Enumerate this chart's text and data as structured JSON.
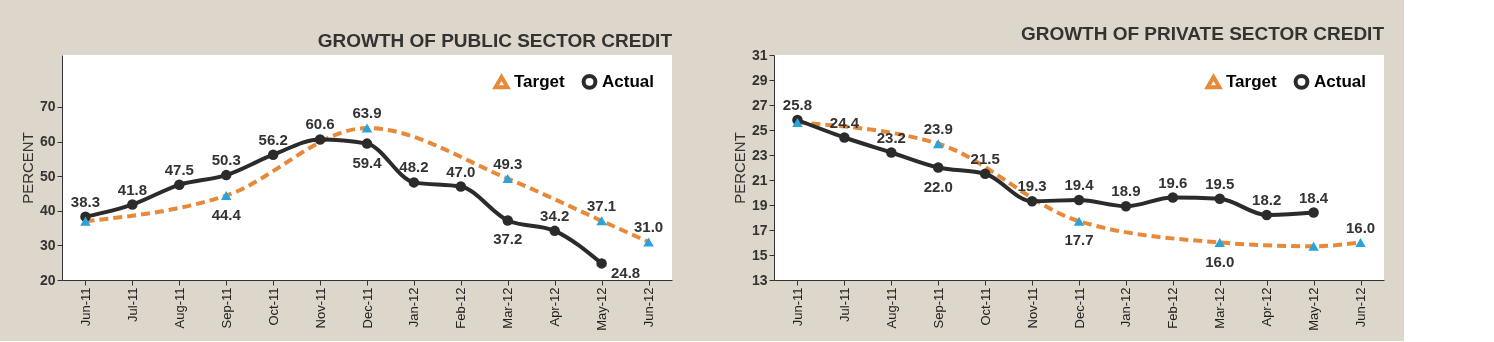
{
  "chart_data": [
    {
      "type": "line",
      "title": "GROWTH OF PUBLIC SECTOR CREDIT",
      "ylabel": "PERCENT",
      "categories": [
        "Jun-11",
        "Jul-11",
        "Aug-11",
        "Sep-11",
        "Oct-11",
        "Nov-11",
        "Dec-11",
        "Jan-12",
        "Feb-12",
        "Mar-12",
        "Apr-12",
        "May-12",
        "Jun-12"
      ],
      "series": [
        {
          "name": "Target",
          "color": "#e8893a",
          "marker": "triangle",
          "line_style": "dashed",
          "values": [
            37,
            null,
            null,
            44.4,
            null,
            null,
            63.9,
            null,
            null,
            49.3,
            null,
            37.1,
            31.0
          ],
          "value_labels": [
            null,
            null,
            null,
            "44.4",
            null,
            null,
            "63.9",
            null,
            null,
            "49.3",
            null,
            "37.1",
            "31.0"
          ]
        },
        {
          "name": "Actual",
          "color": "#2b2b2b",
          "marker": "circle",
          "line_style": "solid",
          "values": [
            38.3,
            41.8,
            47.5,
            50.3,
            56.2,
            60.6,
            59.4,
            48.2,
            47.0,
            37.2,
            34.2,
            24.8,
            null
          ],
          "value_labels": [
            "38.3",
            "41.8",
            "47.5",
            "50.3",
            "56.2",
            "60.6",
            "59.4",
            "48.2",
            "47.0",
            "37.2",
            "34.2",
            "24.8",
            null
          ]
        }
      ],
      "ylim": [
        20,
        85
      ],
      "yticks": [
        20,
        30,
        40,
        50,
        60,
        70
      ],
      "grid": false,
      "legend": "top right"
    },
    {
      "type": "line",
      "title": "GROWTH OF PRIVATE SECTOR CREDIT",
      "ylabel": "PERCENT",
      "categories": [
        "Jun-11",
        "Jul-11",
        "Aug-11",
        "Sep-11",
        "Oct-11",
        "Nov-11",
        "Dec-11",
        "Jan-12",
        "Feb-12",
        "Mar-12",
        "Apr-12",
        "May-12",
        "Jun-12"
      ],
      "series": [
        {
          "name": "Target",
          "color": "#e8893a",
          "marker": "triangle",
          "line_style": "dashed",
          "values": [
            25.6,
            null,
            null,
            23.9,
            null,
            null,
            17.7,
            null,
            null,
            16.0,
            null,
            15.7,
            16.0
          ],
          "value_labels": [
            null,
            null,
            null,
            "23.9",
            null,
            null,
            "17.7",
            null,
            null,
            "16.0",
            null,
            null,
            "16.0"
          ]
        },
        {
          "name": "Actual",
          "color": "#2b2b2b",
          "marker": "circle",
          "line_style": "solid",
          "values": [
            25.8,
            24.4,
            23.2,
            22.0,
            21.5,
            19.3,
            19.4,
            18.9,
            19.6,
            19.5,
            18.2,
            18.4,
            null
          ],
          "value_labels": [
            "25.8",
            "24.4",
            "23.2",
            "22.0",
            "21.5",
            "19.3",
            "19.4",
            "18.9",
            "19.6",
            "19.5",
            "18.2",
            "18.4",
            null
          ]
        }
      ],
      "ylim": [
        13,
        31
      ],
      "yticks": [
        13,
        15,
        17,
        19,
        21,
        23,
        25,
        27,
        29,
        31
      ],
      "grid": false,
      "legend": "top right"
    }
  ]
}
